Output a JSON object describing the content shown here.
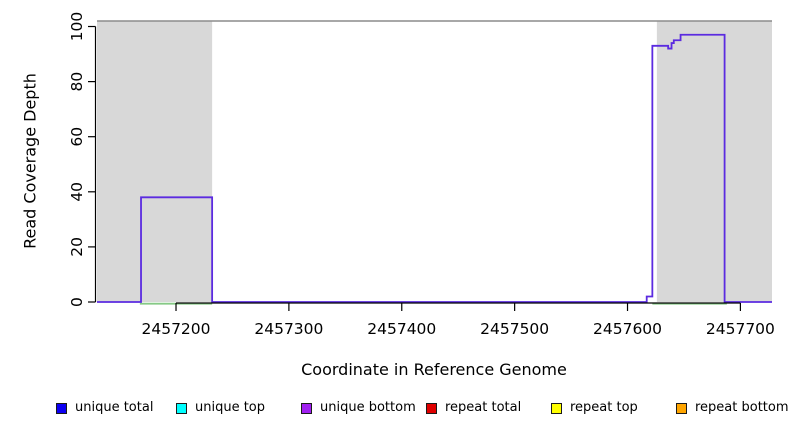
{
  "chart_data": {
    "type": "line",
    "title": "",
    "xlabel": "Coordinate in Reference Genome",
    "ylabel": "Read Coverage Depth",
    "xlim": [
      2457130,
      2457728
    ],
    "ylim": [
      0,
      102
    ],
    "x_ticks": [
      2457200,
      2457300,
      2457400,
      2457500,
      2457600,
      2457700
    ],
    "y_ticks": [
      0,
      20,
      40,
      60,
      80,
      100
    ],
    "grid": false,
    "legend_position": "bottom",
    "background_color": "#ffffff",
    "shaded_regions": [
      {
        "name": "shaded-region-left",
        "start": 2457130,
        "end": 2457232,
        "color": "#d8d8d8"
      },
      {
        "name": "shaded-region-right",
        "start": 2457626,
        "end": 2457728,
        "color": "#d8d8d8"
      }
    ],
    "boundary_line": {
      "y": 102,
      "color": "#8c8c8c"
    },
    "series": [
      {
        "name": "unique coverage depth",
        "color": "#5b2be0",
        "points": [
          [
            2457130,
            0
          ],
          [
            2457169,
            0
          ],
          [
            2457169,
            38
          ],
          [
            2457232,
            38
          ],
          [
            2457232,
            0
          ],
          [
            2457617,
            0
          ],
          [
            2457617,
            2
          ],
          [
            2457622,
            2
          ],
          [
            2457622,
            93
          ],
          [
            2457636,
            93
          ],
          [
            2457636,
            92
          ],
          [
            2457639,
            92
          ],
          [
            2457639,
            94
          ],
          [
            2457641,
            94
          ],
          [
            2457641,
            95
          ],
          [
            2457647,
            95
          ],
          [
            2457647,
            97
          ],
          [
            2457686,
            97
          ],
          [
            2457686,
            0
          ],
          [
            2457728,
            0
          ]
        ]
      },
      {
        "name": "covered-interval marker",
        "color": "#86c986",
        "y": 0,
        "segments": [
          [
            2457168,
            2457232
          ],
          [
            2457622,
            2457688
          ]
        ]
      }
    ],
    "legend": [
      {
        "label": "unique total",
        "color": "#0d00f2"
      },
      {
        "label": "unique top",
        "color": "#00ffff"
      },
      {
        "label": "unique bottom",
        "color": "#a020f0"
      },
      {
        "label": "repeat total",
        "color": "#e00000"
      },
      {
        "label": "repeat top",
        "color": "#ffff00"
      },
      {
        "label": "repeat bottom",
        "color": "#ffa500"
      }
    ]
  }
}
